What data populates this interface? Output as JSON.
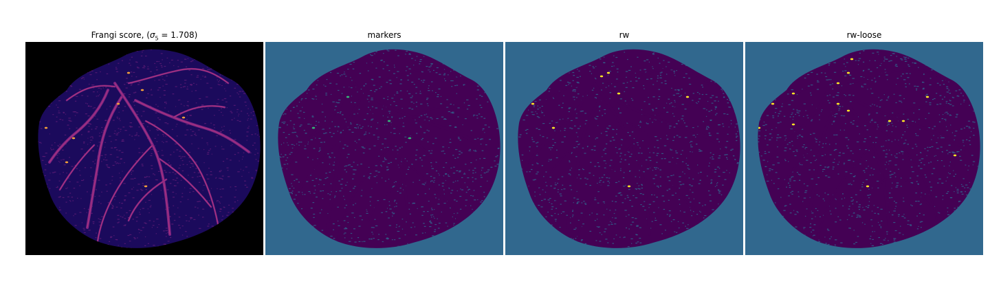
{
  "figure": {
    "panels": [
      {
        "title_prefix": "Frangi score, (",
        "title_math": "σ",
        "title_sub": "5",
        "title_suffix": " = 1.708)",
        "colormap": "magma",
        "background": "#000000",
        "tissue": "#1b0a5c",
        "vessel": "#7e2482",
        "highlight": "#f4a13a"
      },
      {
        "title": "markers",
        "colormap": "viridis",
        "background": "#31688e",
        "tissue": "#440154",
        "vessel": "#31688e",
        "highlight": "#35b779"
      },
      {
        "title": "rw",
        "colormap": "viridis",
        "background": "#31688e",
        "tissue": "#440154",
        "vessel": "#31688e",
        "highlight": "#fde725"
      },
      {
        "title": "rw-loose",
        "colormap": "viridis",
        "background": "#31688e",
        "tissue": "#440154",
        "vessel": "#31688e",
        "highlight": "#fde725"
      }
    ]
  }
}
